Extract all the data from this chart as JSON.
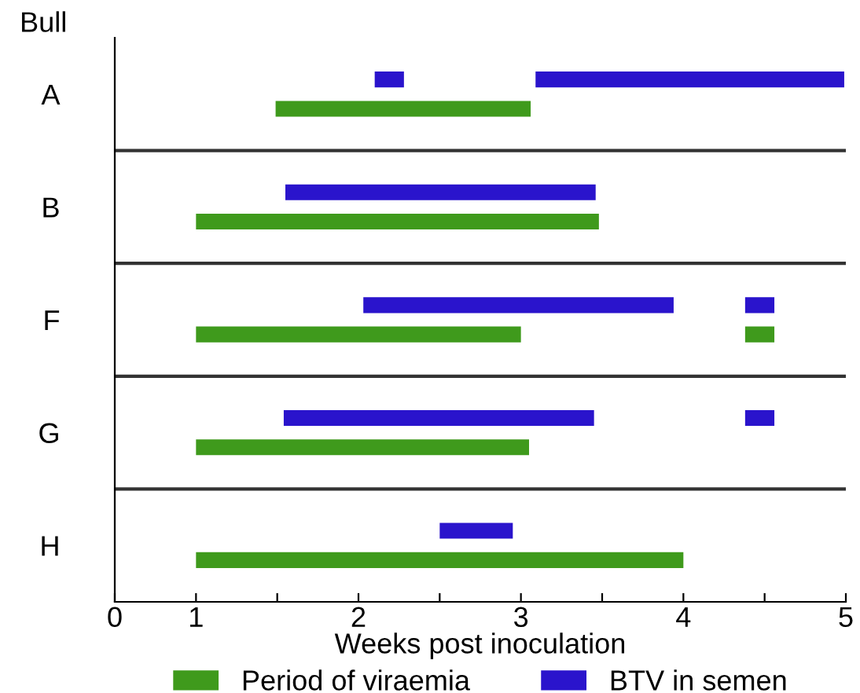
{
  "chart_data": {
    "type": "bar",
    "orientation": "horizontal",
    "ylabel": "Bull",
    "xlabel": "Weeks post inoculation",
    "categories": [
      "A",
      "B",
      "F",
      "G",
      "H"
    ],
    "series": [
      {
        "name": "Period of viraemia",
        "color": "#3f9a1c",
        "base": [
          1.49,
          1.0,
          1.0,
          1.0,
          1.0
        ],
        "values": [
          1.57,
          2.48,
          2.0,
          2.05,
          3.0
        ]
      },
      {
        "name": "BTV in semen",
        "color": "#2a14cc",
        "base": [
          2.1,
          1.55,
          2.03,
          1.54,
          2.5
        ],
        "values": [
          0.18,
          1.91,
          1.91,
          1.91,
          0.45
        ]
      },
      {
        "color": "#3f9a1c",
        "base": [
          null,
          null,
          4.38,
          null,
          null
        ],
        "values": [
          null,
          null,
          0.18,
          null,
          null
        ]
      },
      {
        "color": "#2a14cc",
        "base": [
          3.09,
          null,
          4.38,
          4.38,
          null
        ],
        "values": [
          1.9,
          null,
          0.18,
          0.18,
          null
        ]
      }
    ],
    "xlim": [
      0.5,
      5
    ],
    "xticks": [
      {
        "value": 0.5,
        "label": "0"
      },
      1,
      {
        "value": 1.5,
        "label": null
      },
      2,
      {
        "value": 2.5,
        "label": null
      },
      3,
      {
        "value": 3.5,
        "label": null
      },
      4,
      {
        "value": 4.5,
        "label": null
      },
      5
    ],
    "legend": "bottom",
    "grid": false
  }
}
